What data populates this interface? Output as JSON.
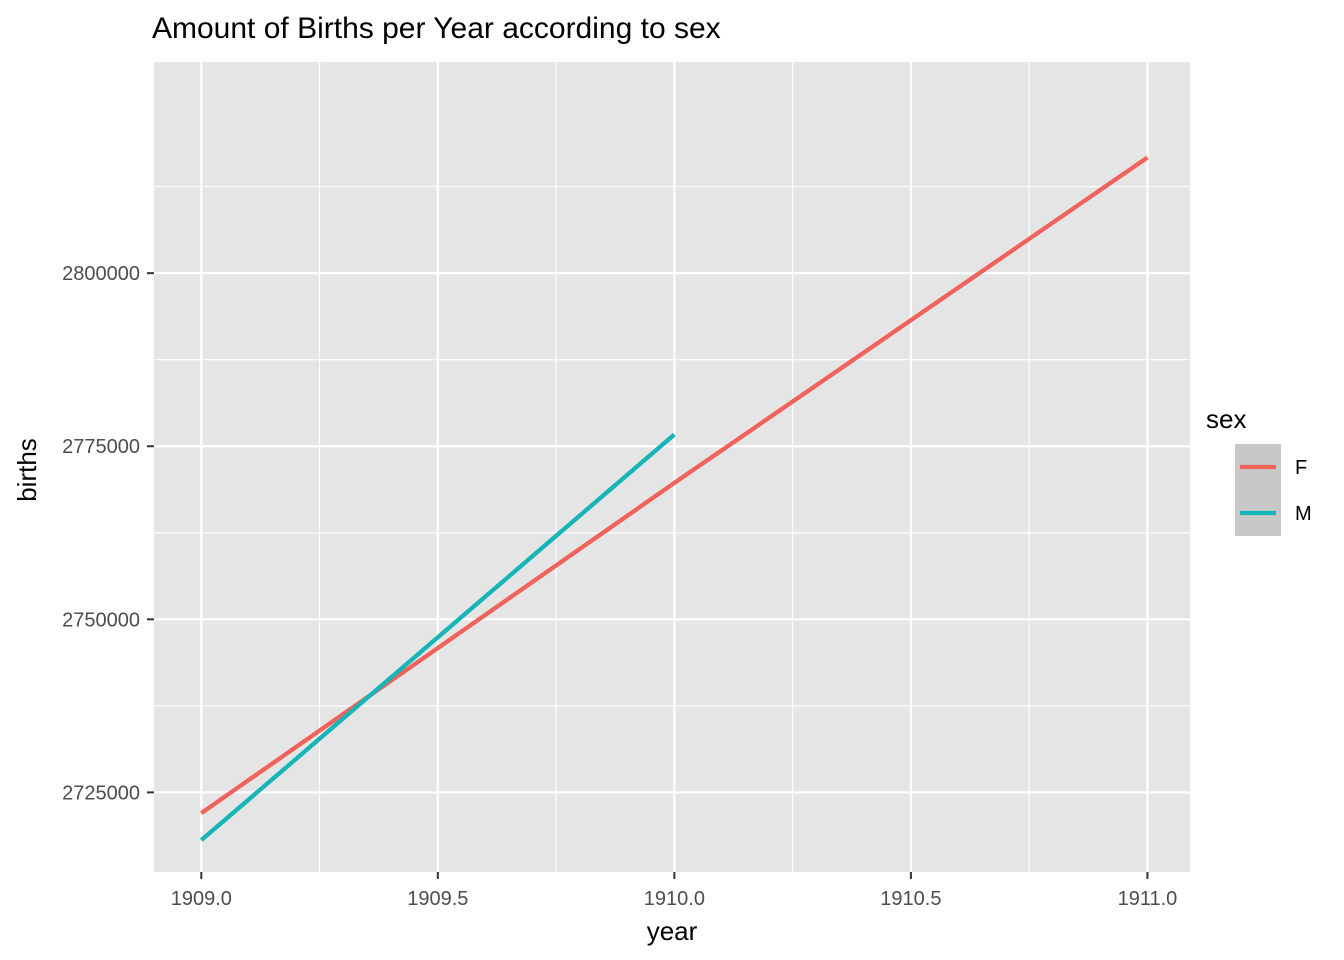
{
  "chart_data": {
    "type": "line",
    "title": "Amount of Births per Year according to sex",
    "xlabel": "year",
    "ylabel": "births",
    "xlim": [
      1908.9,
      1911.09
    ],
    "ylim": [
      2713500,
      2830500
    ],
    "x_ticks": [
      1909.0,
      1909.5,
      1910.0,
      1910.5,
      1911.0
    ],
    "x_tick_labels": [
      "1909.0",
      "1909.5",
      "1910.0",
      "1910.5",
      "1911.0"
    ],
    "y_ticks": [
      2725000,
      2750000,
      2775000,
      2800000
    ],
    "y_tick_labels": [
      "2725000",
      "2750000",
      "2775000",
      "2800000"
    ],
    "grid": true,
    "panel_background": "#e5e5e5",
    "grid_color": "#ffffff",
    "legend": {
      "title": "sex",
      "position": "right",
      "key_background": "#c8c8c8",
      "entries": [
        "F",
        "M"
      ]
    },
    "series": [
      {
        "name": "F",
        "color": "#f0625c",
        "x": [
          1909,
          1910,
          1911
        ],
        "y": [
          2722000,
          2769700,
          2816700
        ]
      },
      {
        "name": "M",
        "color": "#15b5b8",
        "x": [
          1909,
          1910
        ],
        "y": [
          2718100,
          2776700
        ]
      }
    ]
  }
}
